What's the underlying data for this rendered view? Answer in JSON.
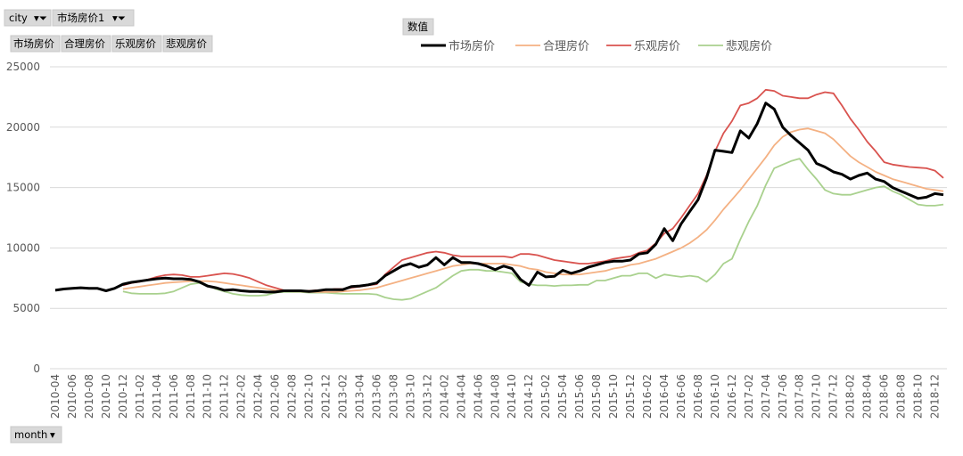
{
  "pivot": {
    "filter_fields": [
      "city",
      "市场房价1"
    ],
    "value_fields": [
      "市场房价",
      "合理房价",
      "乐观房价",
      "悲观房价"
    ],
    "values_label": "数值",
    "axis_field": "month"
  },
  "chart_data": {
    "type": "line",
    "categories": [
      "2010-04",
      null,
      "2010-06",
      null,
      "2010-08",
      null,
      "2010-10",
      null,
      "2010-12",
      null,
      "2011-02",
      null,
      "2011-04",
      null,
      "2011-06",
      null,
      "2011-08",
      null,
      "2011-10",
      null,
      "2011-12",
      null,
      "2012-02",
      null,
      "2012-04",
      null,
      "2012-06",
      null,
      "2012-08",
      null,
      "2012-10",
      null,
      "2012-12",
      null,
      "2013-02",
      null,
      "2013-04",
      null,
      "2013-06",
      null,
      "2013-08",
      null,
      "2013-10",
      null,
      "2013-12",
      null,
      "2014-02",
      null,
      "2014-04",
      null,
      "2014-06",
      null,
      "2014-08",
      null,
      "2014-10",
      null,
      "2014-12",
      null,
      "2015-02",
      null,
      "2015-04",
      null,
      "2015-06",
      null,
      "2015-08",
      null,
      "2015-10",
      null,
      "2015-12",
      null,
      "2016-02",
      null,
      "2016-04",
      null,
      "2016-06",
      null,
      "2016-08",
      null,
      "2016-10",
      null,
      "2016-12",
      null,
      "2017-02",
      null,
      "2017-04",
      null,
      "2017-06",
      null,
      "2017-08",
      null,
      "2017-10",
      null,
      "2017-12",
      null,
      "2018-02",
      null,
      "2018-04",
      null,
      "2018-06",
      null,
      "2018-08",
      null,
      "2018-10",
      null,
      "2018-12",
      null
    ],
    "series": [
      {
        "name": "市场房价",
        "color": "#000000",
        "width": 3,
        "values": [
          6500,
          6600,
          6650,
          6700,
          6650,
          6650,
          6450,
          6650,
          7000,
          7150,
          7250,
          7350,
          7450,
          7500,
          7450,
          7450,
          7400,
          7200,
          6850,
          6700,
          6500,
          6550,
          6450,
          6400,
          6400,
          6350,
          6350,
          6450,
          6450,
          6450,
          6400,
          6450,
          6550,
          6550,
          6550,
          6800,
          6850,
          6950,
          7100,
          7700,
          8100,
          8500,
          8700,
          8400,
          8600,
          9200,
          8600,
          9200,
          8800,
          8800,
          8700,
          8500,
          8200,
          8500,
          8300,
          7400,
          6900,
          8000,
          7600,
          7650,
          8150,
          7900,
          8100,
          8400,
          8600,
          8800,
          8900,
          8900,
          9000,
          9500,
          9600,
          10300,
          11600,
          10600,
          12000,
          13000,
          14000,
          15800,
          18100,
          18000,
          17900,
          19700,
          19100,
          20300,
          22000,
          21500,
          20000,
          19300,
          18700,
          18100,
          17000,
          16700,
          16300,
          16100,
          15700,
          16000,
          16200,
          15700,
          15500,
          15000,
          14700,
          14400,
          14100,
          14200,
          14500,
          14400
        ]
      },
      {
        "name": "合理房价",
        "color": "#f4b183",
        "width": 1.8,
        "values": [
          null,
          null,
          null,
          null,
          null,
          null,
          null,
          null,
          6600,
          6700,
          6800,
          6900,
          7000,
          7100,
          7150,
          7200,
          7250,
          7250,
          7250,
          7200,
          7100,
          7000,
          6900,
          6800,
          6700,
          6600,
          6500,
          6450,
          6400,
          6400,
          6350,
          6350,
          6350,
          6350,
          6400,
          6450,
          6500,
          6600,
          6700,
          6900,
          7100,
          7300,
          7500,
          7700,
          7900,
          8100,
          8300,
          8500,
          8600,
          8700,
          8700,
          8700,
          8700,
          8700,
          8600,
          8500,
          8300,
          8200,
          8000,
          7900,
          7800,
          7800,
          7800,
          7900,
          8000,
          8100,
          8300,
          8400,
          8600,
          8700,
          8900,
          9100,
          9400,
          9700,
          10000,
          10400,
          10900,
          11500,
          12300,
          13200,
          14000,
          14800,
          15700,
          16600,
          17500,
          18500,
          19200,
          19600,
          19800,
          19900,
          19700,
          19500,
          19000,
          18300,
          17600,
          17100,
          16700,
          16300,
          16000,
          15700,
          15500,
          15300,
          15100,
          14900,
          14800,
          14700
        ]
      },
      {
        "name": "乐观房价",
        "color": "#d9534f",
        "width": 1.8,
        "values": [
          null,
          null,
          null,
          null,
          null,
          null,
          null,
          null,
          6900,
          7100,
          7200,
          7400,
          7600,
          7750,
          7800,
          7750,
          7600,
          7600,
          7700,
          7800,
          7900,
          7850,
          7700,
          7500,
          7200,
          6900,
          6700,
          6500,
          6500,
          6450,
          6450,
          6500,
          6500,
          6600,
          6600,
          6700,
          6800,
          6900,
          7000,
          7800,
          8400,
          9000,
          9200,
          9400,
          9600,
          9700,
          9600,
          9400,
          9300,
          9300,
          9300,
          9300,
          9300,
          9300,
          9200,
          9500,
          9500,
          9400,
          9200,
          9000,
          8900,
          8800,
          8700,
          8700,
          8800,
          8900,
          9100,
          9200,
          9300,
          9600,
          9800,
          10400,
          11200,
          11600,
          12500,
          13500,
          14500,
          16000,
          18000,
          19500,
          20500,
          21800,
          22000,
          22400,
          23100,
          23000,
          22600,
          22500,
          22400,
          22400,
          22700,
          22900,
          22800,
          21800,
          20700,
          19800,
          18800,
          18000,
          17100,
          16900,
          16800,
          16700,
          16650,
          16600,
          16400,
          15800
        ]
      },
      {
        "name": "悲观房价",
        "color": "#a9d18e",
        "width": 1.8,
        "values": [
          null,
          null,
          null,
          null,
          null,
          null,
          null,
          null,
          6400,
          6250,
          6200,
          6200,
          6200,
          6250,
          6400,
          6700,
          7000,
          7100,
          6900,
          6600,
          6400,
          6200,
          6100,
          6050,
          6050,
          6100,
          6300,
          6350,
          6350,
          6350,
          6300,
          6300,
          6300,
          6250,
          6200,
          6200,
          6200,
          6200,
          6150,
          5900,
          5750,
          5700,
          5800,
          6100,
          6400,
          6700,
          7200,
          7700,
          8100,
          8200,
          8200,
          8100,
          8100,
          8000,
          7900,
          7200,
          7000,
          6900,
          6900,
          6850,
          6900,
          6900,
          6950,
          6950,
          7300,
          7300,
          7500,
          7700,
          7700,
          7900,
          7900,
          7500,
          7800,
          7700,
          7600,
          7700,
          7600,
          7200,
          7800,
          8700,
          9100,
          10700,
          12200,
          13500,
          15200,
          16600,
          16900,
          17200,
          17400,
          16500,
          15700,
          14800,
          14500,
          14400,
          14400,
          14600,
          14800,
          15000,
          15100,
          14700,
          14400,
          14000,
          13600,
          13500,
          13500,
          13600
        ]
      }
    ],
    "ylim": [
      0,
      25000
    ],
    "yticks": [
      0,
      5000,
      10000,
      15000,
      20000,
      25000
    ],
    "grid": true,
    "legend": "top"
  }
}
